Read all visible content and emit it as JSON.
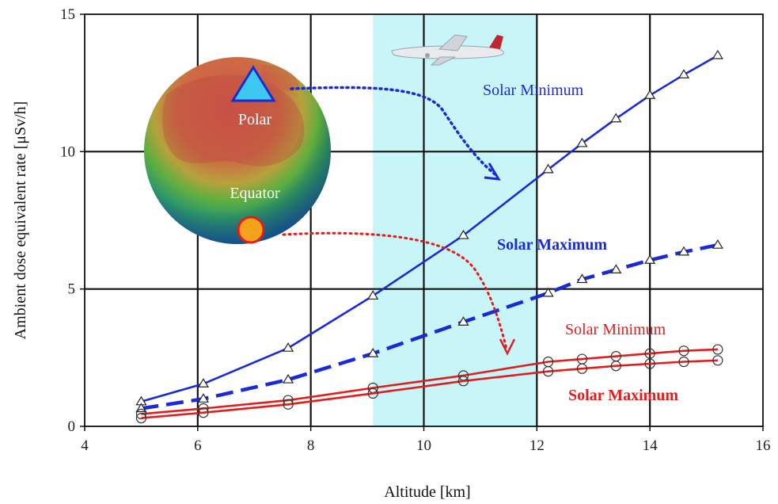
{
  "chart_data": {
    "type": "line",
    "xlabel": "Altitude  [km]",
    "ylabel": "Ambient dose equivalent rate  [μSv/h]",
    "xlim": [
      4,
      16
    ],
    "ylim": [
      0,
      15
    ],
    "xticks": [
      4,
      6,
      8,
      10,
      12,
      14,
      16
    ],
    "yticks": [
      0,
      5,
      10,
      15
    ],
    "grid": true,
    "highlight_band": {
      "x_from": 9.1,
      "x_to": 12.0,
      "color": "#c8f6f8"
    },
    "series": [
      {
        "name": "Solar Minimum",
        "region": "Polar",
        "color": "#1a2bd6",
        "dash": false,
        "marker": "triangle",
        "x": [
          5.0,
          6.1,
          7.6,
          9.1,
          10.7,
          12.2,
          12.8,
          13.4,
          14.0,
          14.6,
          15.2
        ],
        "y": [
          0.9,
          1.55,
          2.85,
          4.75,
          6.95,
          9.35,
          10.3,
          11.2,
          12.05,
          12.8,
          13.5
        ]
      },
      {
        "name": "Solar Maximum",
        "region": "Polar",
        "color": "#1a2bd6",
        "dash": true,
        "marker": "triangle",
        "x": [
          5.0,
          6.1,
          7.6,
          9.1,
          10.7,
          12.2,
          12.8,
          13.4,
          14.0,
          14.6,
          15.2
        ],
        "y": [
          0.65,
          1.0,
          1.7,
          2.65,
          3.8,
          4.85,
          5.35,
          5.7,
          6.05,
          6.35,
          6.6
        ]
      },
      {
        "name": "Solar Minimum",
        "region": "Equator",
        "color": "#e11d1d",
        "dash": false,
        "marker": "circle",
        "x": [
          5.0,
          6.1,
          7.6,
          9.1,
          10.7,
          12.2,
          12.8,
          13.4,
          14.0,
          14.6,
          15.2
        ],
        "y": [
          0.45,
          0.65,
          0.95,
          1.4,
          1.85,
          2.35,
          2.45,
          2.55,
          2.65,
          2.75,
          2.8
        ]
      },
      {
        "name": "Solar Maximum",
        "region": "Equator",
        "color": "#e11d1d",
        "dash": false,
        "marker": "circle",
        "x": [
          5.0,
          6.1,
          7.6,
          9.1,
          10.7,
          12.2,
          12.8,
          13.4,
          14.0,
          14.6,
          15.2
        ],
        "y": [
          0.3,
          0.5,
          0.8,
          1.2,
          1.65,
          2.0,
          2.1,
          2.2,
          2.28,
          2.35,
          2.4
        ]
      }
    ],
    "annotations": [
      {
        "text": "Solar Minimum",
        "color": "#1a2bd6",
        "bold": false
      },
      {
        "text": "Solar Maximum",
        "color": "#1a2bd6",
        "bold": true
      },
      {
        "text": "Solar Minimum",
        "color": "#e11d1d",
        "bold": false
      },
      {
        "text": "Solar Maximum",
        "color": "#e11d1d",
        "bold": true
      },
      {
        "text": "Polar",
        "color": "#ffffff",
        "bold": false
      },
      {
        "text": "Equator",
        "color": "#ffffff",
        "bold": false
      }
    ]
  }
}
